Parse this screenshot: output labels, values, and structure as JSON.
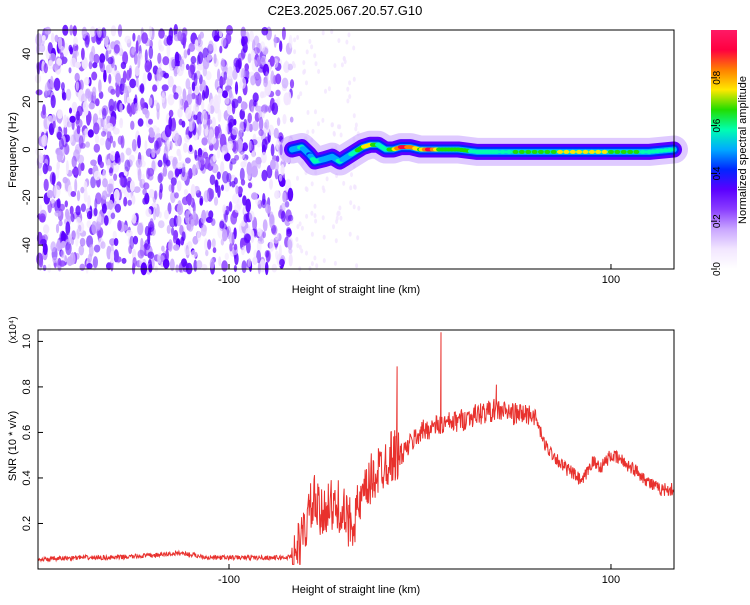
{
  "title": "C2E3.2025.067.20.57.G10",
  "colors": {
    "snr_line": "#e8312d",
    "colormap": [
      "#ffffff",
      "#f2e6ff",
      "#c9a6ff",
      "#8a3dff",
      "#5a00ff",
      "#0026ff",
      "#00aaff",
      "#00ffb0",
      "#22dd00",
      "#ffe800",
      "#ff8000",
      "#ff0040",
      "#ff1a66"
    ]
  },
  "chart_data": [
    {
      "type": "heatmap",
      "name": "spectrogram",
      "xlabel": "Height of straight line (km)",
      "ylabel": "Frequency (Hz)",
      "xlim": [
        -200,
        133
      ],
      "ylim": [
        -50,
        50
      ],
      "xticks": [
        -100,
        100
      ],
      "yticks": [
        -40,
        -20,
        0,
        20,
        40
      ],
      "colorbar": {
        "label": "Normalized spectral amplitude",
        "range": [
          0,
          1
        ],
        "ticks": [
          "0.0",
          "0.2",
          "0.4",
          "0.6",
          "0.8"
        ]
      },
      "noise_region": {
        "x": [
          -200,
          -67
        ],
        "amplitude": 0.2
      },
      "signal_track": {
        "x": [
          -67,
          -62,
          -58,
          -55,
          -50,
          -46,
          -42,
          -38,
          -34,
          -30,
          -26,
          -22,
          -18,
          -14,
          -10,
          -5,
          0,
          5,
          10,
          20,
          30,
          40,
          60,
          80,
          100,
          120,
          133
        ],
        "freq": [
          0,
          1,
          -2,
          -5,
          -4,
          -3,
          -5,
          -3,
          -1,
          1,
          2,
          2,
          0,
          0,
          1,
          1,
          0,
          0,
          0,
          0,
          -1,
          -1,
          -1,
          -1,
          -1,
          -1,
          0
        ],
        "amplitude": [
          0.5,
          0.55,
          0.45,
          0.6,
          0.5,
          0.5,
          0.55,
          0.5,
          0.6,
          0.7,
          0.75,
          0.6,
          0.55,
          0.7,
          0.9,
          0.85,
          0.7,
          0.95,
          0.7,
          0.65,
          0.6,
          0.6,
          0.65,
          0.75,
          0.7,
          0.6,
          0.55
        ]
      }
    },
    {
      "type": "line",
      "name": "snr",
      "xlabel": "Height of straight line (km)",
      "ylabel": "SNR (10 * v/v)",
      "y_multiplier": "(x10⁴)",
      "xlim": [
        -200,
        133
      ],
      "ylim": [
        0,
        1.05
      ],
      "xticks": [
        -100,
        100
      ],
      "yticks": [
        0.2,
        0.4,
        0.6,
        0.8,
        1.0
      ],
      "yticklabels": [
        "0.2",
        "0.4",
        "0.6",
        "0.8",
        "1.0"
      ],
      "x": [
        -200,
        -180,
        -160,
        -140,
        -125,
        -110,
        -90,
        -70,
        -66,
        -62,
        -58,
        -55,
        -52,
        -48,
        -45,
        -42,
        -38,
        -35,
        -30,
        -25,
        -20,
        -15,
        -10,
        -5,
        0,
        5,
        10,
        15,
        20,
        30,
        40,
        50,
        60,
        65,
        70,
        75,
        80,
        85,
        90,
        95,
        100,
        105,
        110,
        115,
        120,
        125,
        130,
        133
      ],
      "values": [
        0.04,
        0.05,
        0.05,
        0.06,
        0.07,
        0.05,
        0.05,
        0.05,
        0.06,
        0.12,
        0.25,
        0.3,
        0.22,
        0.3,
        0.25,
        0.28,
        0.2,
        0.22,
        0.3,
        0.4,
        0.45,
        0.5,
        0.5,
        0.55,
        0.6,
        0.62,
        0.63,
        0.64,
        0.65,
        0.68,
        0.7,
        0.68,
        0.68,
        0.55,
        0.5,
        0.45,
        0.42,
        0.38,
        0.47,
        0.45,
        0.5,
        0.48,
        0.45,
        0.42,
        0.38,
        0.35,
        0.35,
        0.35
      ],
      "spikes": [
        {
          "x": -12,
          "y": 0.89
        },
        {
          "x": 11,
          "y": 1.04
        },
        {
          "x": 40,
          "y": 0.81
        }
      ]
    }
  ]
}
